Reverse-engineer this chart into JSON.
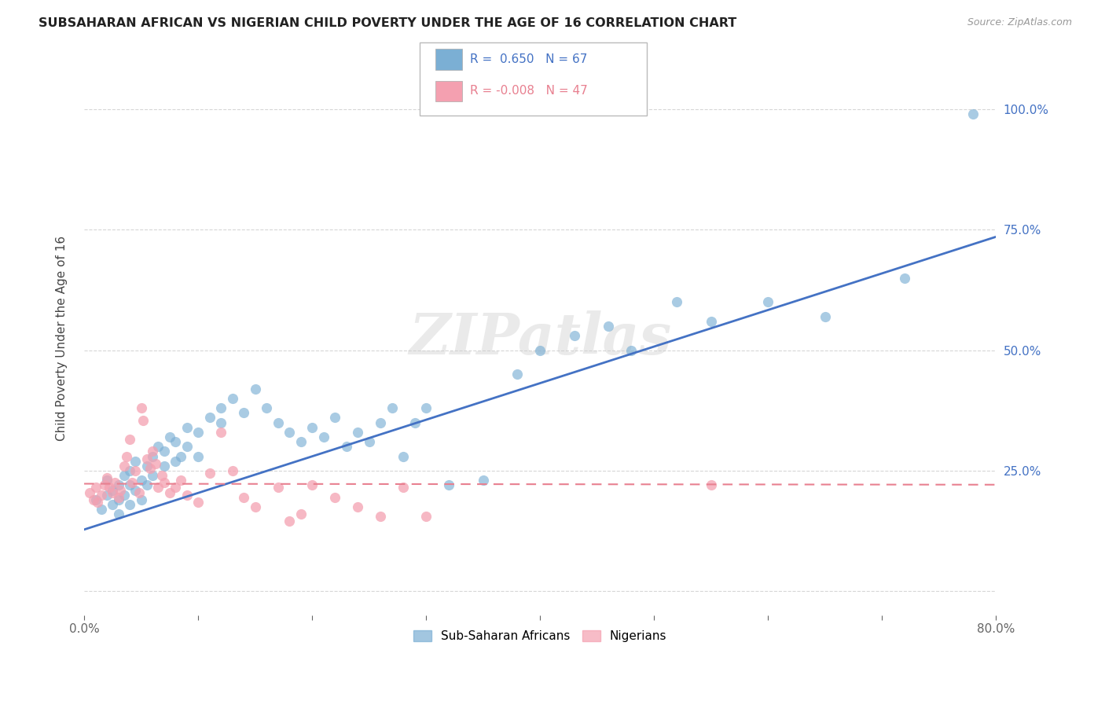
{
  "title": "SUBSAHARAN AFRICAN VS NIGERIAN CHILD POVERTY UNDER THE AGE OF 16 CORRELATION CHART",
  "source": "Source: ZipAtlas.com",
  "ylabel": "Child Poverty Under the Age of 16",
  "xlim": [
    0.0,
    0.8
  ],
  "ylim": [
    -0.05,
    1.1
  ],
  "xticks": [
    0.0,
    0.1,
    0.2,
    0.3,
    0.4,
    0.5,
    0.6,
    0.7,
    0.8
  ],
  "xticklabels": [
    "0.0%",
    "",
    "",
    "",
    "",
    "",
    "",
    "",
    "80.0%"
  ],
  "ytick_positions": [
    0.0,
    0.25,
    0.5,
    0.75,
    1.0
  ],
  "ytick_labels_right": [
    "",
    "25.0%",
    "50.0%",
    "75.0%",
    "100.0%"
  ],
  "grid_color": "#cccccc",
  "background_color": "#ffffff",
  "blue_color": "#7BAFD4",
  "pink_color": "#F4A0B0",
  "blue_line_color": "#4472C4",
  "pink_line_color": "#E88090",
  "legend_r_blue": "0.650",
  "legend_n_blue": "67",
  "legend_r_pink": "-0.008",
  "legend_n_pink": "47",
  "legend_label_blue": "Sub-Saharan Africans",
  "legend_label_pink": "Nigerians",
  "watermark": "ZIPatlas",
  "blue_line_x0": 0.0,
  "blue_line_y0": 0.128,
  "blue_line_x1": 0.8,
  "blue_line_y1": 0.735,
  "pink_line_x0": 0.0,
  "pink_line_y0": 0.223,
  "pink_line_x1": 0.8,
  "pink_line_y1": 0.221,
  "blue_scatter_x": [
    0.01,
    0.015,
    0.02,
    0.02,
    0.025,
    0.025,
    0.03,
    0.03,
    0.03,
    0.035,
    0.035,
    0.04,
    0.04,
    0.04,
    0.045,
    0.045,
    0.05,
    0.05,
    0.055,
    0.055,
    0.06,
    0.06,
    0.065,
    0.07,
    0.07,
    0.075,
    0.08,
    0.08,
    0.085,
    0.09,
    0.09,
    0.1,
    0.1,
    0.11,
    0.12,
    0.12,
    0.13,
    0.14,
    0.15,
    0.16,
    0.17,
    0.18,
    0.19,
    0.2,
    0.21,
    0.22,
    0.23,
    0.24,
    0.25,
    0.26,
    0.27,
    0.28,
    0.29,
    0.3,
    0.32,
    0.35,
    0.38,
    0.4,
    0.43,
    0.46,
    0.48,
    0.52,
    0.55,
    0.6,
    0.65,
    0.72,
    0.78
  ],
  "blue_scatter_y": [
    0.19,
    0.17,
    0.2,
    0.23,
    0.21,
    0.18,
    0.22,
    0.19,
    0.16,
    0.2,
    0.24,
    0.18,
    0.22,
    0.25,
    0.21,
    0.27,
    0.19,
    0.23,
    0.22,
    0.26,
    0.24,
    0.28,
    0.3,
    0.26,
    0.29,
    0.32,
    0.27,
    0.31,
    0.28,
    0.3,
    0.34,
    0.33,
    0.28,
    0.36,
    0.38,
    0.35,
    0.4,
    0.37,
    0.42,
    0.38,
    0.35,
    0.33,
    0.31,
    0.34,
    0.32,
    0.36,
    0.3,
    0.33,
    0.31,
    0.35,
    0.38,
    0.28,
    0.35,
    0.38,
    0.22,
    0.23,
    0.45,
    0.5,
    0.53,
    0.55,
    0.5,
    0.6,
    0.56,
    0.6,
    0.57,
    0.65,
    0.99
  ],
  "pink_scatter_x": [
    0.005,
    0.008,
    0.01,
    0.012,
    0.015,
    0.018,
    0.02,
    0.022,
    0.025,
    0.027,
    0.03,
    0.032,
    0.035,
    0.037,
    0.04,
    0.042,
    0.045,
    0.048,
    0.05,
    0.052,
    0.055,
    0.058,
    0.06,
    0.063,
    0.065,
    0.068,
    0.07,
    0.075,
    0.08,
    0.085,
    0.09,
    0.1,
    0.11,
    0.12,
    0.13,
    0.14,
    0.15,
    0.17,
    0.18,
    0.19,
    0.2,
    0.22,
    0.24,
    0.26,
    0.28,
    0.3,
    0.55
  ],
  "pink_scatter_y": [
    0.205,
    0.19,
    0.215,
    0.185,
    0.2,
    0.22,
    0.235,
    0.215,
    0.205,
    0.225,
    0.195,
    0.21,
    0.26,
    0.28,
    0.315,
    0.225,
    0.25,
    0.205,
    0.38,
    0.355,
    0.275,
    0.255,
    0.29,
    0.265,
    0.215,
    0.24,
    0.225,
    0.205,
    0.215,
    0.23,
    0.2,
    0.185,
    0.245,
    0.33,
    0.25,
    0.195,
    0.175,
    0.215,
    0.145,
    0.16,
    0.22,
    0.195,
    0.175,
    0.155,
    0.215,
    0.155,
    0.22
  ]
}
